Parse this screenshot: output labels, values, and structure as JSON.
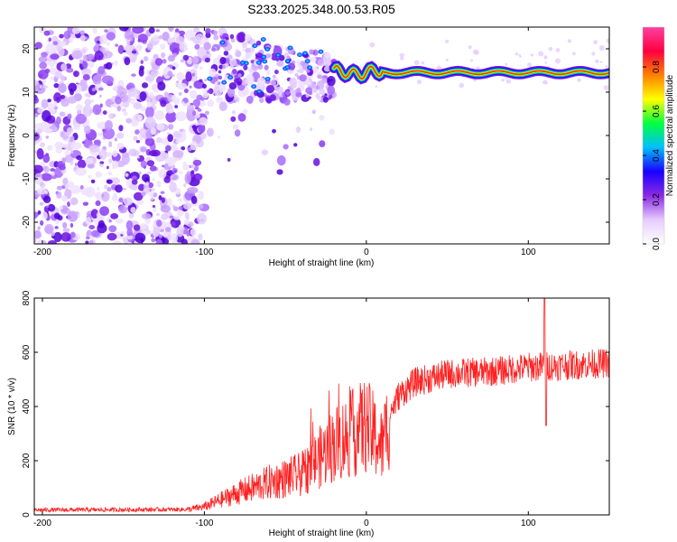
{
  "title": "S233.2025.348.00.53.R05",
  "chart_data": [
    {
      "type": "heatmap",
      "xlabel": "Height of straight line (km)",
      "ylabel": "Frequency (Hz)",
      "xlim": [
        -205,
        150
      ],
      "ylim": [
        -25,
        25
      ],
      "xticks": [
        -200,
        -100,
        0,
        100
      ],
      "yticks": [
        -20,
        -10,
        0,
        10,
        20
      ],
      "colorbar": {
        "label": "Normalized spectral amplitude",
        "range": [
          0,
          0.98
        ],
        "ticks": [
          0,
          0.2,
          0.4,
          0.6,
          0.8
        ],
        "colors": [
          "#ffffff",
          "#e6ccff",
          "#8a2be2",
          "#1a00ff",
          "#00bfff",
          "#00ff40",
          "#ffff00",
          "#ff8000",
          "#ff0040",
          "#ff40a0"
        ]
      },
      "features": {
        "noise_region_x": [
          -205,
          -105
        ],
        "scatter_region_x": [
          -100,
          -20
        ],
        "scatter_freq_range": [
          8,
          25
        ],
        "ridge_start_x": -20,
        "ridge_freq_hz": 15.5,
        "ridge_peak_amplitude": 0.98
      }
    },
    {
      "type": "line",
      "xlabel": "Height of straight line (km)",
      "ylabel": "SNR (10 * v/v)",
      "xlim": [
        -205,
        150
      ],
      "ylim": [
        0,
        800
      ],
      "xticks": [
        -200,
        -100,
        0,
        100
      ],
      "yticks": [
        0,
        200,
        400,
        600,
        800
      ],
      "series": [
        {
          "color": "#ff2020",
          "trend_x": [
            -205,
            -110,
            -100,
            -80,
            -60,
            -40,
            -20,
            0,
            10,
            15,
            20,
            30,
            50,
            80,
            100,
            150
          ],
          "trend_y": [
            18,
            20,
            30,
            80,
            120,
            150,
            260,
            330,
            250,
            380,
            440,
            490,
            520,
            530,
            545,
            560
          ],
          "peak": {
            "x": 110,
            "y": 800
          },
          "dip": {
            "x": 111,
            "y": 330
          }
        }
      ]
    }
  ]
}
